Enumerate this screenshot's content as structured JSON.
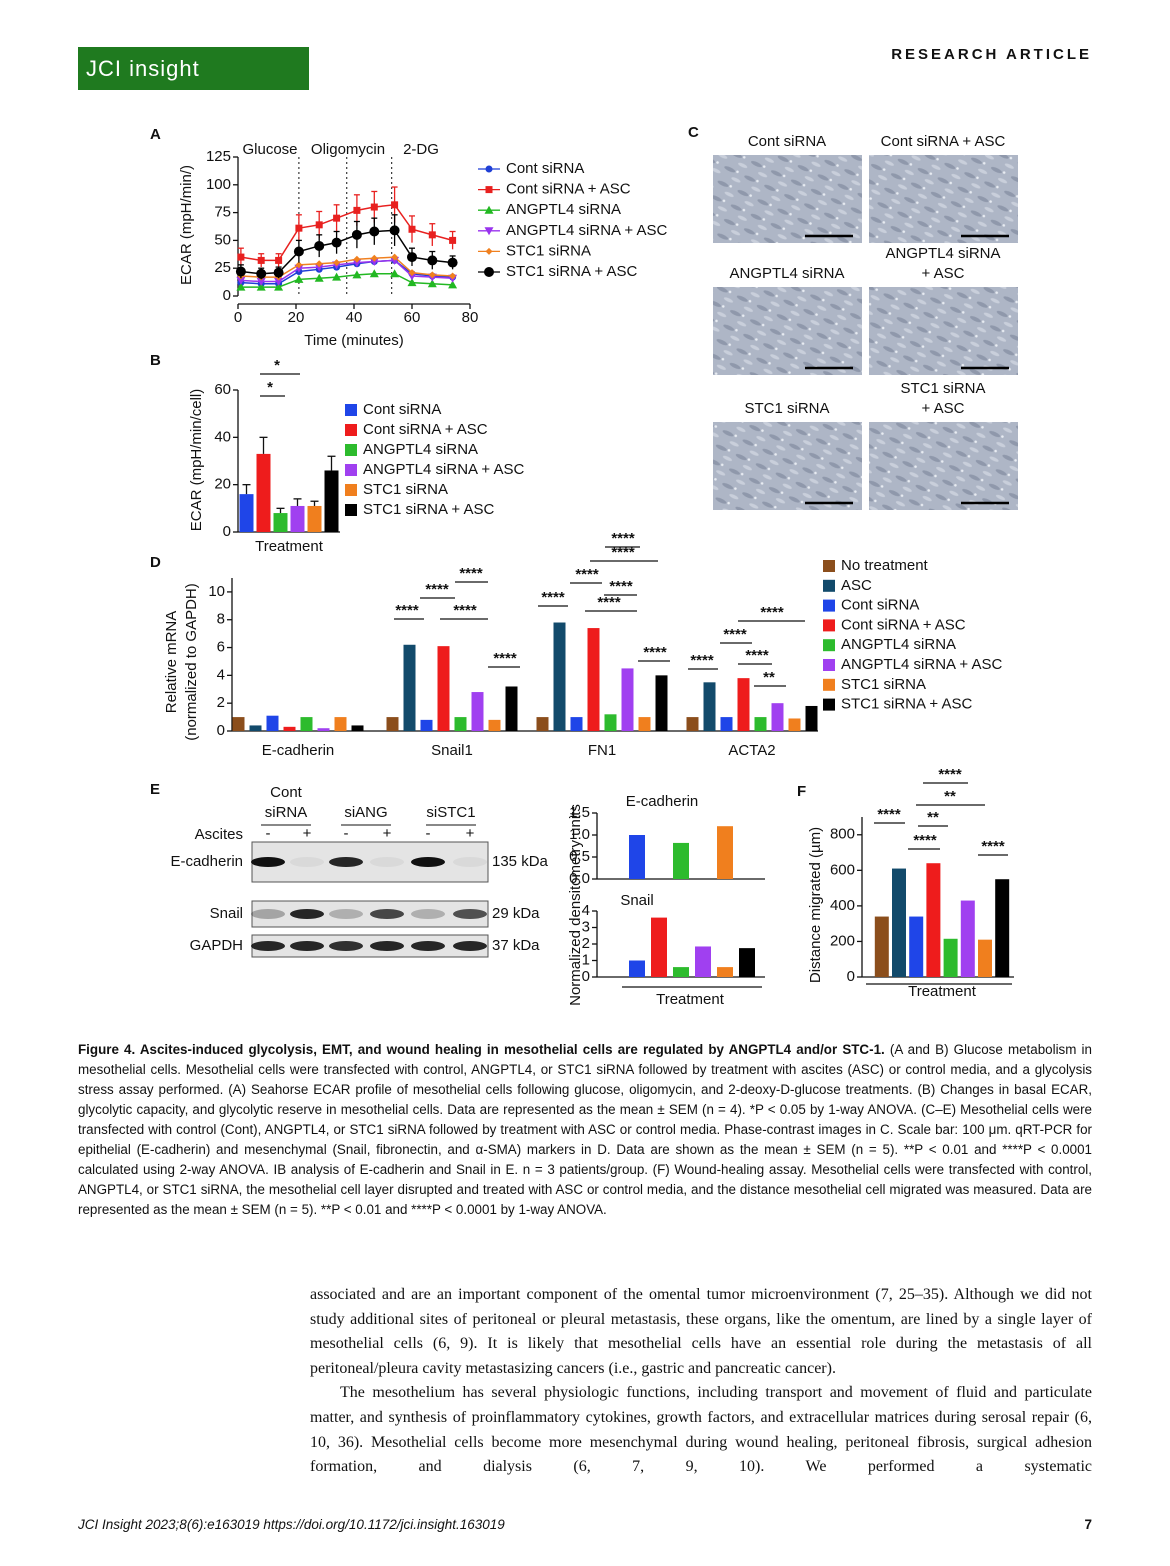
{
  "header": {
    "logo": "JCI insight",
    "section": "RESEARCH ARTICLE"
  },
  "chart_data": [
    {
      "type": "line",
      "label": "A",
      "xlabel": "Time (minutes)",
      "ylabel": [
        "ECAR (mpH/min/)"
      ],
      "x": [
        1,
        8,
        14,
        21,
        28,
        34,
        41,
        47,
        54,
        60,
        67,
        74
      ],
      "xlim": [
        0,
        80
      ],
      "xticks": [
        0,
        20,
        40,
        60,
        80
      ],
      "ylim": [
        0,
        125
      ],
      "yticks": [
        0,
        25,
        50,
        75,
        100,
        125
      ],
      "annotations": [
        {
          "text": "Glucose",
          "x": 21
        },
        {
          "text": "Oligomycin",
          "x": 37.5
        },
        {
          "text": "2-DG",
          "x": 53
        }
      ],
      "series": [
        {
          "name": "Cont siRNA",
          "color": "#1f3fd6",
          "marker": "circle",
          "values": [
            12,
            11,
            11,
            22,
            24,
            26,
            29,
            31,
            32,
            20,
            18,
            17
          ]
        },
        {
          "name": "Cont siRNA + ASC",
          "color": "#e8201f",
          "marker": "square",
          "values": [
            35,
            32,
            32,
            61,
            64,
            70,
            77,
            80,
            82,
            60,
            55,
            50
          ],
          "errors": [
            8,
            6,
            6,
            12,
            12,
            12,
            14,
            14,
            16,
            12,
            10,
            8
          ]
        },
        {
          "name": "ANGPTL4 siRNA",
          "color": "#22b822",
          "marker": "triangle-up",
          "values": [
            8,
            8,
            8,
            15,
            16,
            17,
            19,
            20,
            20,
            12,
            11,
            10
          ]
        },
        {
          "name": "ANGPTL4 siRNA + ASC",
          "color": "#9933ee",
          "marker": "triangle-down",
          "values": [
            14,
            13,
            13,
            25,
            26,
            28,
            30,
            31,
            32,
            18,
            17,
            16
          ]
        },
        {
          "name": "STC1 siRNA",
          "color": "#f08020",
          "marker": "diamond",
          "values": [
            18,
            17,
            17,
            28,
            29,
            30,
            33,
            34,
            35,
            21,
            19,
            18
          ]
        },
        {
          "name": "STC1 siRNA + ASC",
          "color": "#000000",
          "marker": "big-circle",
          "values": [
            22,
            20,
            21,
            40,
            45,
            48,
            55,
            58,
            59,
            35,
            32,
            30
          ],
          "errors": [
            6,
            5,
            5,
            10,
            10,
            10,
            12,
            12,
            14,
            8,
            8,
            6
          ]
        }
      ]
    },
    {
      "type": "bar",
      "label": "B",
      "ylabel": [
        "ECAR (mpH/min/cell)"
      ],
      "categories": [
        "Treatment"
      ],
      "ylim": [
        0,
        60
      ],
      "yticks": [
        0,
        20,
        40,
        60
      ],
      "annotations": [
        "*",
        "*"
      ],
      "series": [
        {
          "name": "Cont siRNA",
          "color": "#1f45e8",
          "values": [
            16
          ],
          "errors": [
            4
          ]
        },
        {
          "name": "Cont siRNA + ASC",
          "color": "#ee1c1c",
          "values": [
            33
          ],
          "errors": [
            7
          ]
        },
        {
          "name": "ANGPTL4 siRNA",
          "color": "#2dbb2d",
          "values": [
            8
          ],
          "errors": [
            2
          ]
        },
        {
          "name": "ANGPTL4 siRNA + ASC",
          "color": "#a040f0",
          "values": [
            11
          ],
          "errors": [
            3
          ]
        },
        {
          "name": "STC1 siRNA",
          "color": "#f07f1e",
          "values": [
            11
          ],
          "errors": [
            2
          ]
        },
        {
          "name": "STC1 siRNA + ASC",
          "color": "#000000",
          "values": [
            26
          ],
          "errors": [
            6
          ]
        }
      ]
    },
    {
      "type": "bar",
      "label": "D",
      "ylabel": [
        "Relative mRNA",
        "(normalized to GAPDH)"
      ],
      "categories": [
        "E-cadherin",
        "Snail1",
        "FN1",
        "ACTA2"
      ],
      "ylim": [
        0,
        11
      ],
      "yticks": [
        0,
        2,
        4,
        6,
        8,
        10
      ],
      "annotations": [
        "****",
        "****",
        "****",
        "****",
        "****",
        "****",
        "****",
        "****",
        "****",
        "****",
        "****",
        "****",
        "****",
        "****",
        "****",
        "**",
        "****"
      ],
      "series": [
        {
          "name": "No treatment",
          "color": "#8b4e1c",
          "values": [
            1,
            1,
            1,
            1
          ]
        },
        {
          "name": "ASC",
          "color": "#124a6b",
          "values": [
            0.4,
            6.2,
            7.8,
            3.5
          ]
        },
        {
          "name": "Cont siRNA",
          "color": "#1f45e8",
          "values": [
            1.1,
            0.8,
            1,
            1
          ]
        },
        {
          "name": "Cont siRNA + ASC",
          "color": "#ee1c1c",
          "values": [
            0.3,
            6.1,
            7.4,
            3.8
          ]
        },
        {
          "name": "ANGPTL4 siRNA",
          "color": "#2dbb2d",
          "values": [
            1,
            1,
            1.2,
            1
          ]
        },
        {
          "name": "ANGPTL4 siRNA + ASC",
          "color": "#a040f0",
          "values": [
            0.2,
            2.8,
            4.5,
            2
          ]
        },
        {
          "name": "STC1 siRNA",
          "color": "#f07f1e",
          "values": [
            1,
            0.8,
            1,
            0.9
          ]
        },
        {
          "name": "STC1 siRNA + ASC",
          "color": "#000000",
          "values": [
            0.4,
            3.2,
            4,
            1.8
          ]
        }
      ]
    },
    {
      "type": "bar",
      "title": "E-cadherin",
      "ylabel": [
        "Normalized densitometry units"
      ],
      "ylim": [
        0,
        1.5
      ],
      "yticks": [
        {
          "value": 0,
          "label": "0.0"
        },
        {
          "value": 0.5,
          "label": "0.5"
        },
        {
          "value": 1,
          "label": "1.0"
        },
        {
          "value": 1.5,
          "label": "1.5"
        }
      ],
      "values": [
        1.0,
        0,
        0.82,
        0,
        1.2,
        0
      ],
      "colors": [
        "#1f45e8",
        "#ee1c1c",
        "#2dbb2d",
        "#a040f0",
        "#f07f1e",
        "#000000"
      ]
    },
    {
      "type": "bar",
      "title": "Snail",
      "xlabel": "Treatment",
      "ylim": [
        0,
        4
      ],
      "yticks": [
        0,
        1,
        2,
        3,
        4
      ],
      "values": [
        1.0,
        3.6,
        0.6,
        1.85,
        0.6,
        1.75
      ],
      "colors": [
        "#1f45e8",
        "#ee1c1c",
        "#2dbb2d",
        "#a040f0",
        "#f07f1e",
        "#000000"
      ]
    },
    {
      "type": "bar",
      "label": "F",
      "xlabel": "Treatment",
      "ylabel": [
        "Distance migrated (µm)"
      ],
      "ylim": [
        0,
        900
      ],
      "yticks": [
        0,
        200,
        400,
        600,
        800
      ],
      "annotations": [
        "****",
        "****",
        "**",
        "**",
        "****",
        "****"
      ],
      "values": [
        340,
        610,
        340,
        640,
        215,
        430,
        210,
        550
      ],
      "colors": [
        "#8b4e1c",
        "#124a6b",
        "#1f45e8",
        "#ee1c1c",
        "#2dbb2d",
        "#a040f0",
        "#f07f1e",
        "#000000"
      ]
    }
  ],
  "images_panel": {
    "label": "C",
    "images": [
      [
        "Cont siRNA"
      ],
      [
        "Cont siRNA + ASC"
      ],
      [
        "ANGPTL4 siRNA"
      ],
      [
        "ANGPTL4 siRNA",
        "+ ASC"
      ],
      [
        "STC1 siRNA"
      ],
      [
        "STC1 siRNA",
        "+ ASC"
      ]
    ]
  },
  "blot_panel": {
    "label": "E",
    "columns": [
      [
        "Cont",
        "siRNA"
      ],
      [
        "siANG"
      ],
      [
        "siSTC1"
      ]
    ],
    "row_header": "Ascites",
    "treatment": [
      "-",
      "+",
      "-",
      "+",
      "-",
      "+"
    ],
    "bands": [
      {
        "name": "E-cadherin",
        "size": "135 kDa"
      },
      {
        "name": "Snail",
        "size": "29 kDa"
      },
      {
        "name": "GAPDH",
        "size": "37 kDa"
      }
    ]
  },
  "caption": {
    "title": "Figure 4. Ascites-induced glycolysis, EMT, and wound healing in mesothelial cells are regulated by ANGPTL4 and/or STC-1.",
    "text": "(A and B) Glucose metabolism in mesothelial cells. Mesothelial cells were transfected with control, ANGPTL4, or STC1 siRNA followed by treatment with ascites (ASC) or control media, and a glycolysis stress assay performed. (A) Seahorse ECAR profile of mesothelial cells following glucose, oligomycin, and 2-deoxy-D-glucose treatments. (B) Changes in basal ECAR, glycolytic capacity, and glycolytic reserve in mesothelial cells. Data are represented as the mean ± SEM (n = 4). *P < 0.05 by 1-way ANOVA. (C–E) Mesothelial cells were transfected with control (Cont), ANGPTL4, or STC1 siRNA followed by treatment with ASC or control media. Phase-contrast images in C. Scale bar: 100 μm. qRT-PCR for epithelial (E-cadherin) and mesenchymal (Snail, fibronectin, and α-SMA) markers in D. Data are shown as the mean ± SEM (n = 5). **P < 0.01 and ****P < 0.0001 calculated using 2-way ANOVA. IB analysis of E-cadherin and Snail in E. n = 3 patients/group. (F) Wound-healing assay. Mesothelial cells were transfected with control, ANGPTL4, or STC1 siRNA, the mesothelial cell layer disrupted and treated with ASC or control media, and the distance mesothelial cell migrated was measured. Data are represented as the mean ± SEM (n = 5). **P < 0.01 and ****P < 0.0001 by 1-way ANOVA."
  },
  "body": [
    "associated and are an important component of the omental tumor microenvironment (7, 25–35). Although we did not study additional sites of peritoneal or pleural metastasis, these organs, like the omentum, are lined by a single layer of mesothelial cells (6, 9). It is likely that mesothelial cells have an essential role during the metastasis of all peritoneal/pleura cavity metastasizing cancers (i.e., gastric and pancreatic cancer).",
    "The mesothelium has several physiologic functions, including transport and movement of fluid and particulate matter, and synthesis of proinflammatory cytokines, growth factors, and extracellular matrices during serosal repair (6, 10, 36). Mesothelial cells become more mesenchymal during wound healing, peritoneal fibrosis, surgical adhesion formation, and dialysis (6, 7, 9, 10). We performed a systematic"
  ],
  "footer": {
    "citation": "JCI Insight 2023;8(6):e163019  https://doi.org/10.1172/jci.insight.163019",
    "page": "7"
  }
}
